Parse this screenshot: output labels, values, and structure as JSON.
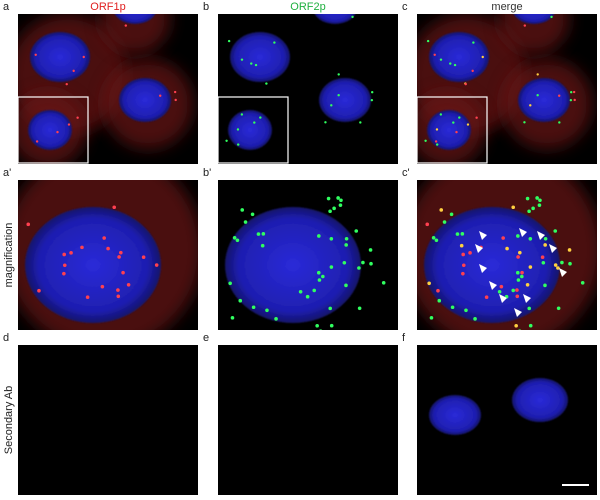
{
  "column_titles": [
    "ORF1p",
    "ORF2p",
    "merge"
  ],
  "rows": [
    {
      "panels": [
        "a",
        "b",
        "c"
      ]
    },
    {
      "label": "magnification",
      "panels": [
        "a'",
        "b'",
        "c'"
      ]
    },
    {
      "label": "Secondary Ab",
      "panels": [
        "d",
        "e",
        "f"
      ]
    }
  ]
}
